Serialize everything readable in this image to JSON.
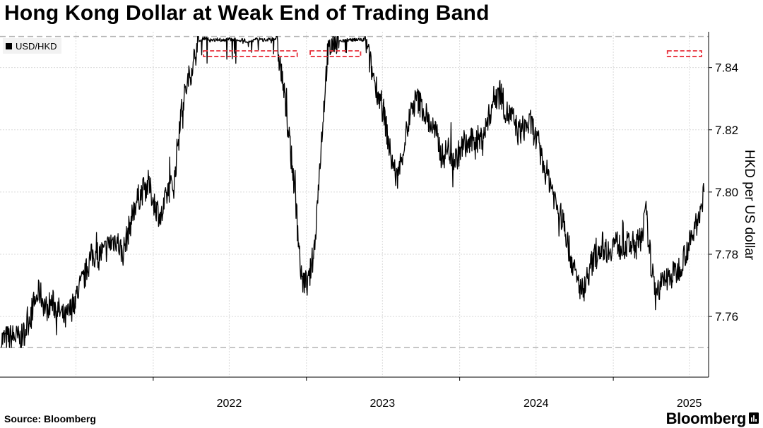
{
  "title": "Hong Kong Dollar at Weak End of Trading Band",
  "source": "Source: Bloomberg",
  "brand": "Bloomberg",
  "chart_data": {
    "type": "line",
    "series": [
      {
        "name": "USD/HKD",
        "x": [
          "2021-01-04",
          "2021-01-20",
          "2021-02-05",
          "2021-02-20",
          "2021-03-05",
          "2021-03-20",
          "2021-04-05",
          "2021-04-20",
          "2021-05-05",
          "2021-05-20",
          "2021-06-05",
          "2021-06-20",
          "2021-07-05",
          "2021-07-20",
          "2021-08-05",
          "2021-08-20",
          "2021-09-05",
          "2021-09-20",
          "2021-10-05",
          "2021-10-20",
          "2021-11-05",
          "2021-11-20",
          "2021-12-05",
          "2021-12-20",
          "2022-01-05",
          "2022-01-20",
          "2022-02-05",
          "2022-02-20",
          "2022-03-05",
          "2022-03-20",
          "2022-04-05",
          "2022-04-20",
          "2022-05-05",
          "2022-05-20",
          "2022-06-05",
          "2022-06-20",
          "2022-07-05",
          "2022-07-20",
          "2022-08-05",
          "2022-08-20",
          "2022-09-05",
          "2022-09-20",
          "2022-10-05",
          "2022-10-20",
          "2022-11-05",
          "2022-11-20",
          "2022-12-05",
          "2022-12-20",
          "2023-01-05",
          "2023-01-20",
          "2023-02-05",
          "2023-02-20",
          "2023-03-05",
          "2023-03-20",
          "2023-04-05",
          "2023-04-20",
          "2023-05-05",
          "2023-05-20",
          "2023-06-05",
          "2023-06-20",
          "2023-07-05",
          "2023-07-20",
          "2023-08-05",
          "2023-08-20",
          "2023-09-05",
          "2023-09-20",
          "2023-10-05",
          "2023-10-20",
          "2023-11-05",
          "2023-11-20",
          "2023-12-05",
          "2023-12-20",
          "2024-01-05",
          "2024-01-20",
          "2024-02-05",
          "2024-02-20",
          "2024-03-05",
          "2024-03-20",
          "2024-04-05",
          "2024-04-20",
          "2024-05-05",
          "2024-05-20",
          "2024-06-05",
          "2024-06-20",
          "2024-07-05",
          "2024-07-20",
          "2024-08-05",
          "2024-08-20",
          "2024-09-05",
          "2024-09-20",
          "2024-10-05",
          "2024-10-20",
          "2024-11-05",
          "2024-11-20",
          "2024-12-05",
          "2024-12-20",
          "2025-01-05",
          "2025-01-20",
          "2025-02-05",
          "2025-02-20",
          "2025-03-05",
          "2025-03-20",
          "2025-04-05",
          "2025-04-20",
          "2025-05-05",
          "2025-05-20",
          "2025-06-05",
          "2025-06-20",
          "2025-07-05",
          "2025-07-20",
          "2025-08-05"
        ],
        "values": [
          7.7525,
          7.753,
          7.7535,
          7.7525,
          7.7565,
          7.763,
          7.768,
          7.7625,
          7.7645,
          7.762,
          7.759,
          7.7625,
          7.768,
          7.772,
          7.779,
          7.78,
          7.7805,
          7.7835,
          7.785,
          7.78,
          7.7885,
          7.7965,
          7.8,
          7.8025,
          7.796,
          7.7915,
          7.8005,
          7.8025,
          7.823,
          7.833,
          7.841,
          7.849,
          7.85,
          7.8492,
          7.8496,
          7.8494,
          7.8497,
          7.8496,
          7.8493,
          7.8491,
          7.8497,
          7.8495,
          7.8498,
          7.8495,
          7.836,
          7.818,
          7.8,
          7.772,
          7.77,
          7.782,
          7.815,
          7.844,
          7.848,
          7.8495,
          7.8493,
          7.8496,
          7.8497,
          7.8495,
          7.8395,
          7.832,
          7.825,
          7.812,
          7.804,
          7.814,
          7.8245,
          7.83,
          7.827,
          7.8225,
          7.819,
          7.811,
          7.814,
          7.81,
          7.814,
          7.815,
          7.817,
          7.817,
          7.821,
          7.829,
          7.8335,
          7.8255,
          7.824,
          7.819,
          7.821,
          7.822,
          7.815,
          7.808,
          7.803,
          7.795,
          7.79,
          7.78,
          7.772,
          7.768,
          7.775,
          7.78,
          7.783,
          7.781,
          7.784,
          7.782,
          7.783,
          7.783,
          7.784,
          7.793,
          7.771,
          7.769,
          7.772,
          7.773,
          7.775,
          7.78,
          7.784,
          7.791,
          7.8
        ],
        "color": "#000000"
      }
    ],
    "x_tick_labels": [
      "2022",
      "2023",
      "2024",
      "2025"
    ],
    "y_tick_labels": [
      "7.76",
      "7.78",
      "7.80",
      "7.82",
      "7.84"
    ],
    "ylabel": "HKD per US dollar",
    "ylim": [
      7.7405,
      7.8515
    ],
    "reference_lines": [
      7.75,
      7.85
    ],
    "highlight_ranges": [
      [
        "2022-05-01",
        "2022-12-10"
      ],
      [
        "2023-01-10",
        "2023-05-10"
      ],
      [
        "2025-05-10",
        "2025-07-30"
      ]
    ],
    "grid": true,
    "legend": "top-left",
    "highlight_color": "#e8323c",
    "reference_color": "#b3b3b3",
    "grid_color": "#dadada"
  }
}
